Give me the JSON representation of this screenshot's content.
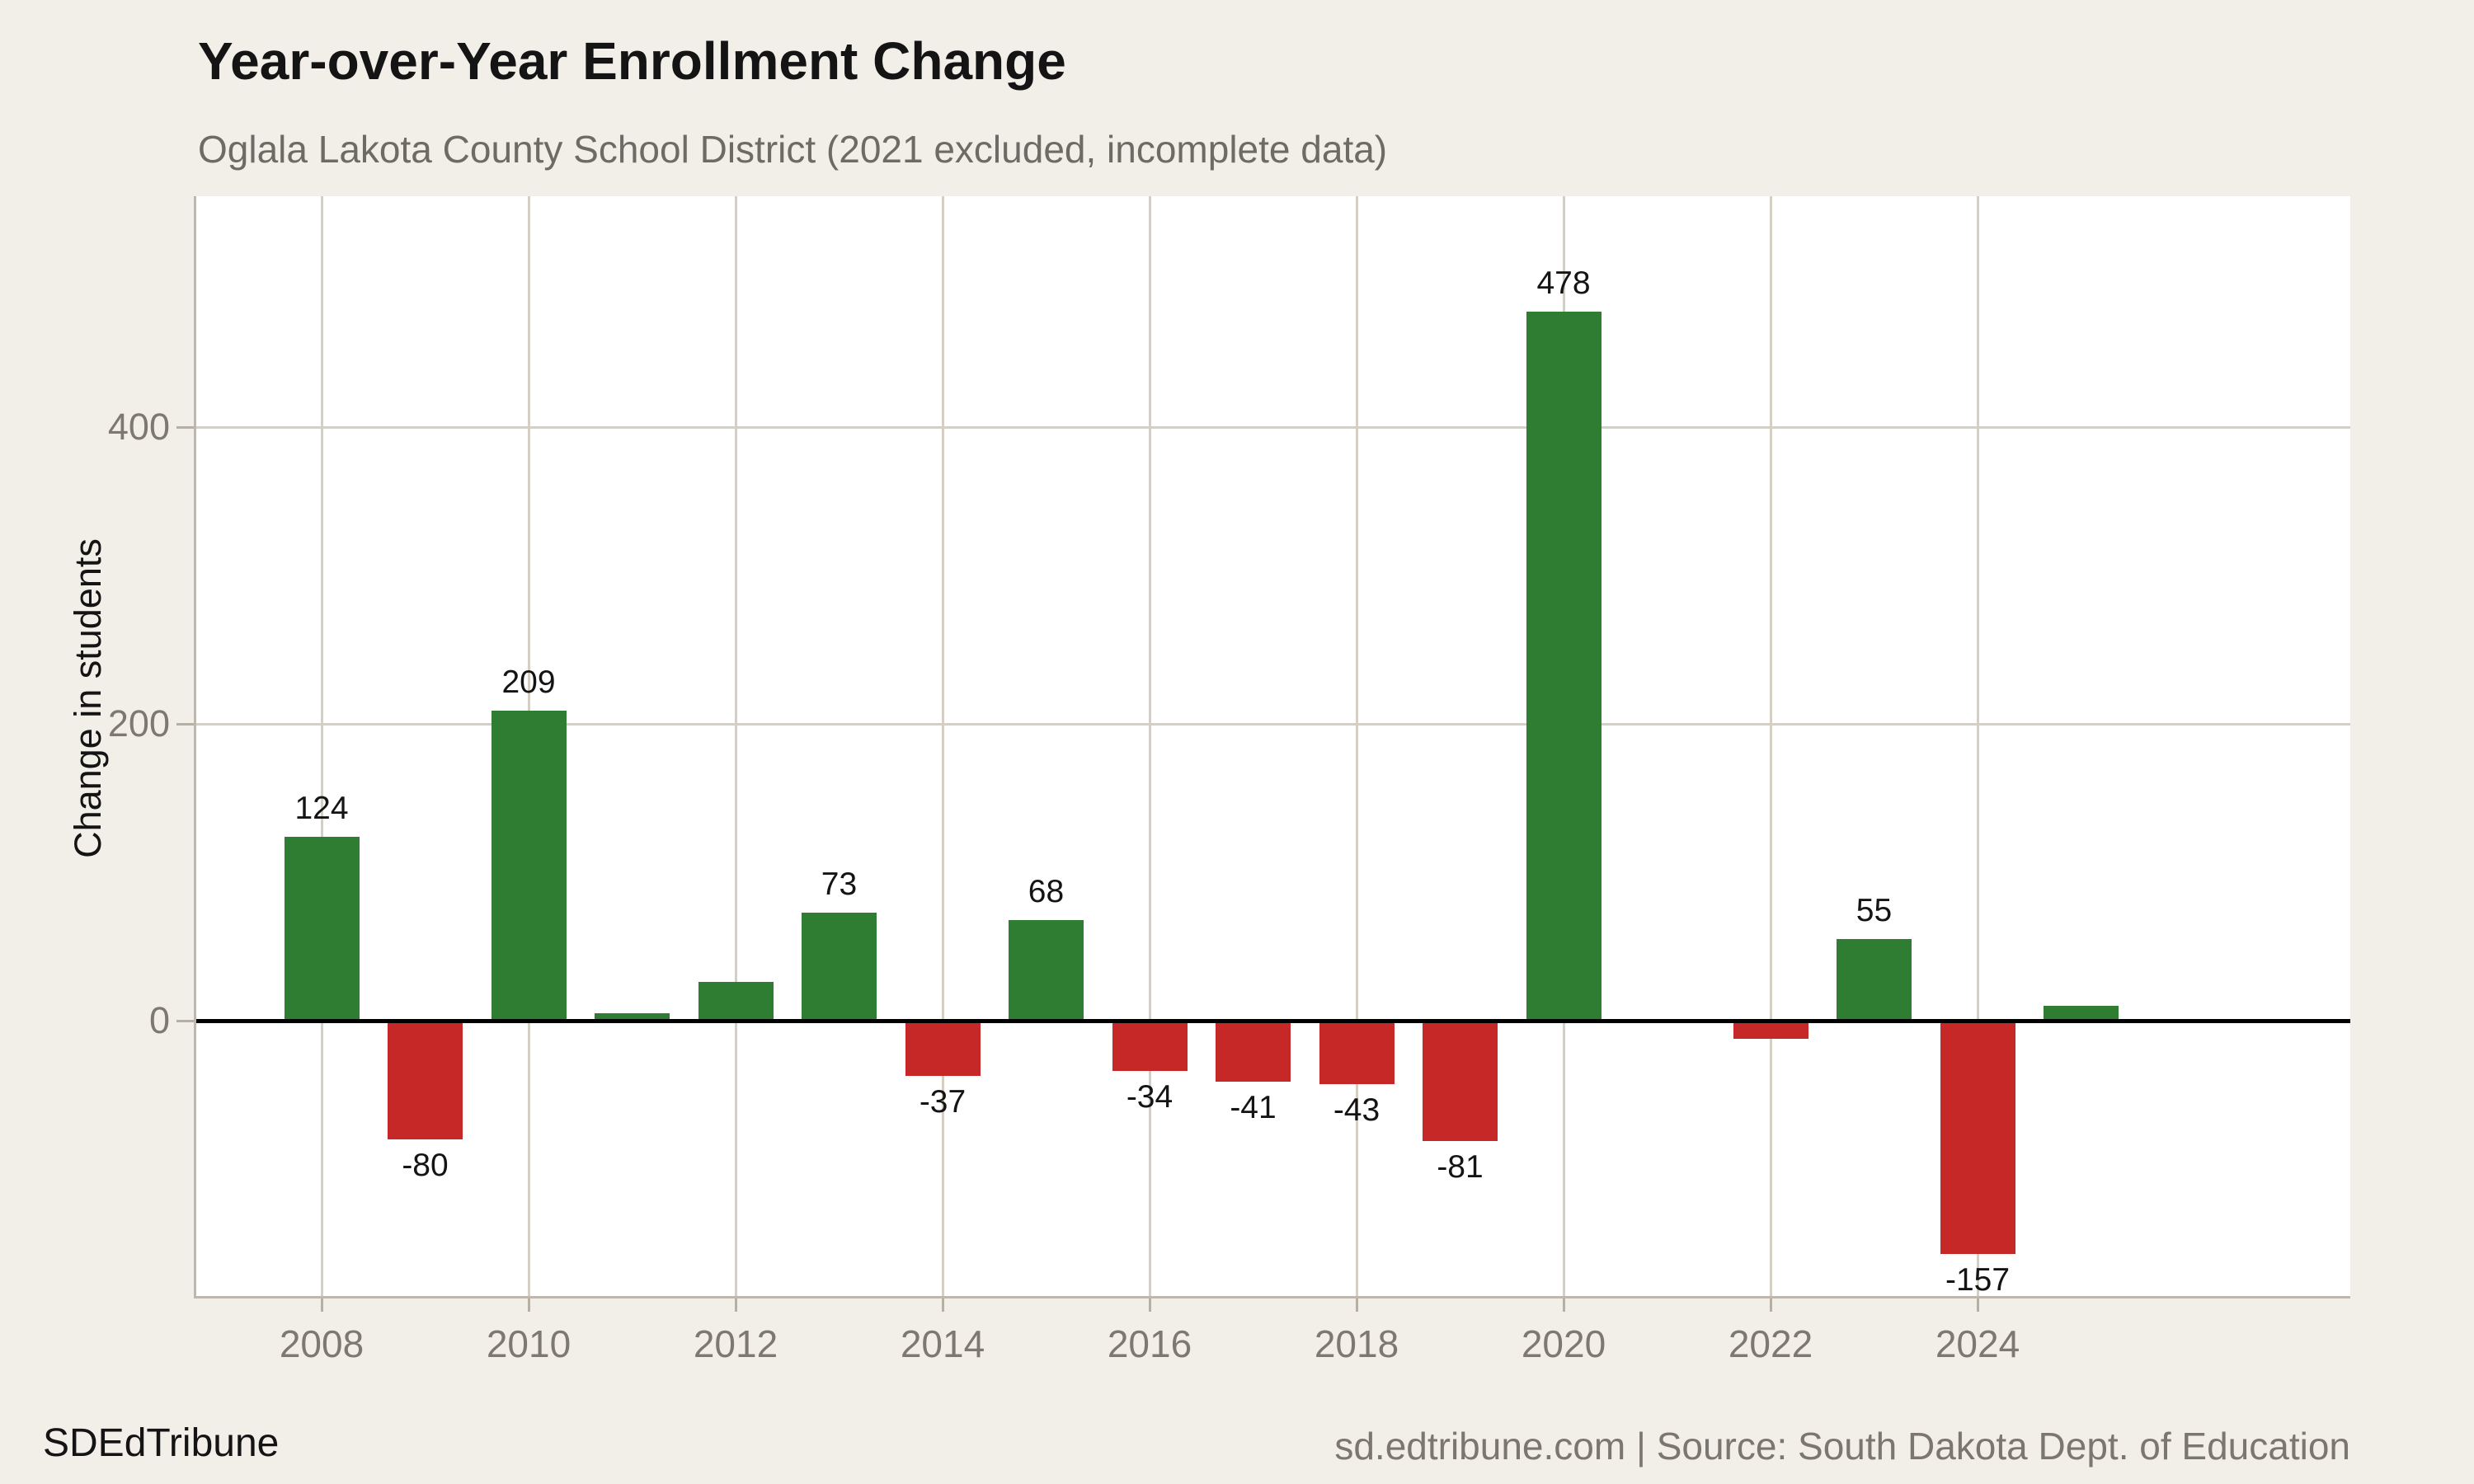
{
  "chart_data": {
    "type": "bar",
    "title": "Year-over-Year Enrollment Change",
    "subtitle": "Oglala Lakota County School District (2021 excluded, incomplete data)",
    "ylabel": "Change in students",
    "xlabel": "",
    "legend_position": "none",
    "grid": "on",
    "ylim": [
      -186,
      555
    ],
    "y_ticks": [
      0,
      200,
      400
    ],
    "y_gridlines": [
      200,
      400
    ],
    "x_tick_years": [
      2008,
      2010,
      2012,
      2014,
      2016,
      2018,
      2020,
      2022,
      2024
    ],
    "excluded_year": 2021,
    "bars": [
      {
        "year": 2008,
        "value": 124,
        "label": "124"
      },
      {
        "year": 2009,
        "value": -80,
        "label": "-80"
      },
      {
        "year": 2010,
        "value": 209,
        "label": "209"
      },
      {
        "year": 2011,
        "value": 5,
        "label": ""
      },
      {
        "year": 2012,
        "value": 26,
        "label": ""
      },
      {
        "year": 2013,
        "value": 73,
        "label": "73"
      },
      {
        "year": 2014,
        "value": -37,
        "label": "-37"
      },
      {
        "year": 2015,
        "value": 68,
        "label": "68"
      },
      {
        "year": 2016,
        "value": -34,
        "label": "-34"
      },
      {
        "year": 2017,
        "value": -41,
        "label": "-41"
      },
      {
        "year": 2018,
        "value": -43,
        "label": "-43"
      },
      {
        "year": 2019,
        "value": -81,
        "label": "-81"
      },
      {
        "year": 2020,
        "value": 478,
        "label": "478"
      },
      {
        "year": 2022,
        "value": -12,
        "label": ""
      },
      {
        "year": 2023,
        "value": 55,
        "label": "55"
      },
      {
        "year": 2024,
        "value": -157,
        "label": "-157"
      },
      {
        "year": 2025,
        "value": 10,
        "label": ""
      }
    ],
    "colors": {
      "positive": "#2f7d32",
      "negative": "#c62828"
    }
  },
  "footer": {
    "brand": "SDEdTribune",
    "source": "sd.edtribune.com | Source: South Dakota Dept. of Education"
  },
  "theme": {
    "background": "#f2efe9",
    "panel": "#ffffff",
    "gridline": "#d4cec3",
    "axis_line": "#bdb7ac",
    "tick_mark": "#b5afa4",
    "zero_line": "#000000",
    "title_color": "#141414",
    "subtitle_color": "#6e6a64",
    "tick_label_color": "#7d7871",
    "value_label_color": "#141414",
    "footer_brand_color": "#141414",
    "footer_source_color": "#7b766f"
  }
}
